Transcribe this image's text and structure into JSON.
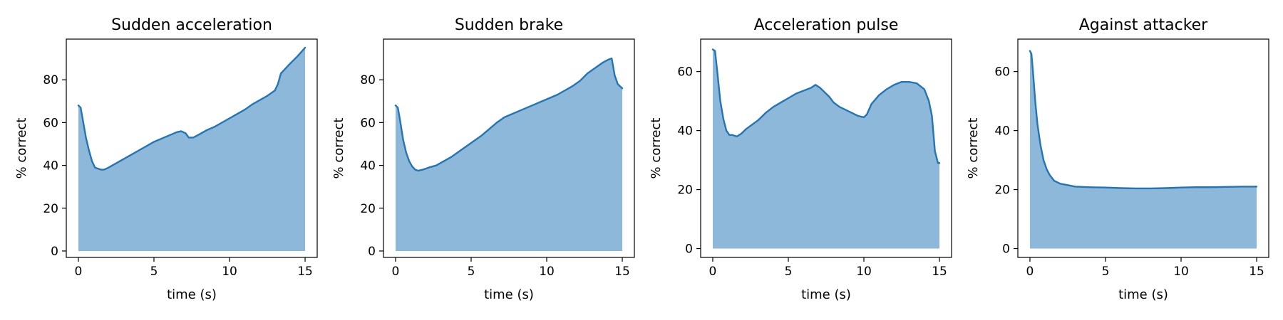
{
  "chart_data": [
    {
      "type": "area",
      "title": "Sudden acceleration",
      "xlabel": "time (s)",
      "ylabel": "% correct",
      "xlim": [
        -0.8,
        15.8
      ],
      "ylim": [
        -3,
        99
      ],
      "xticks": [
        0,
        5,
        10,
        15
      ],
      "yticks": [
        0,
        20,
        40,
        60,
        80
      ],
      "x": [
        0,
        0.15,
        0.3,
        0.5,
        0.7,
        0.9,
        1.1,
        1.3,
        1.5,
        1.7,
        2.0,
        2.5,
        3.0,
        3.5,
        4.0,
        4.5,
        5.0,
        5.5,
        6.0,
        6.5,
        6.8,
        7.1,
        7.3,
        7.6,
        8.0,
        8.5,
        9.0,
        9.5,
        10.0,
        10.5,
        11.0,
        11.5,
        12.0,
        12.5,
        13.0,
        13.2,
        13.4,
        13.6,
        14.0,
        14.5,
        15.0
      ],
      "y": [
        68,
        67,
        61,
        53,
        47,
        42,
        39,
        38.5,
        38,
        38,
        39,
        41,
        43,
        45,
        47,
        49,
        51,
        52.5,
        54,
        55.5,
        56,
        55,
        53,
        53,
        54.5,
        56.5,
        58,
        60,
        62,
        64,
        66,
        68.5,
        70.5,
        72.5,
        75,
        78,
        83,
        84.5,
        87.5,
        91,
        95
      ]
    },
    {
      "type": "area",
      "title": "Sudden brake",
      "xlabel": "time (s)",
      "ylabel": "% correct",
      "xlim": [
        -0.8,
        15.8
      ],
      "ylim": [
        -3,
        99
      ],
      "xticks": [
        0,
        5,
        10,
        15
      ],
      "yticks": [
        0,
        20,
        40,
        60,
        80
      ],
      "x": [
        0,
        0.15,
        0.3,
        0.5,
        0.7,
        0.9,
        1.1,
        1.3,
        1.5,
        1.8,
        2.2,
        2.7,
        3.2,
        3.7,
        4.2,
        4.7,
        5.2,
        5.7,
        6.2,
        6.7,
        7.2,
        7.7,
        8.2,
        8.7,
        9.2,
        9.7,
        10.2,
        10.7,
        11.2,
        11.7,
        12.2,
        12.7,
        13.2,
        13.7,
        14.1,
        14.3,
        14.5,
        14.7,
        15.0
      ],
      "y": [
        68,
        67,
        61,
        52,
        46,
        42,
        39.5,
        38,
        37.5,
        38,
        39,
        40,
        42,
        44,
        46.5,
        49,
        51.5,
        54,
        57,
        60,
        62.5,
        64,
        65.5,
        67,
        68.5,
        70,
        71.5,
        73,
        75,
        77,
        79.5,
        83,
        85.5,
        88,
        89.5,
        90,
        82,
        78,
        76
      ]
    },
    {
      "type": "area",
      "title": "Acceleration pulse",
      "xlabel": "time (s)",
      "ylabel": "% correct",
      "xlim": [
        -0.8,
        15.8
      ],
      "ylim": [
        -3,
        71
      ],
      "xticks": [
        0,
        5,
        10,
        15
      ],
      "yticks": [
        0,
        20,
        40,
        60
      ],
      "x": [
        0,
        0.15,
        0.3,
        0.5,
        0.7,
        0.9,
        1.1,
        1.3,
        1.6,
        1.9,
        2.2,
        2.6,
        3.0,
        3.5,
        4.0,
        4.5,
        5.0,
        5.5,
        6.0,
        6.5,
        6.8,
        7.1,
        7.4,
        7.7,
        8.0,
        8.4,
        8.8,
        9.2,
        9.6,
        10.0,
        10.2,
        10.5,
        11.0,
        11.5,
        12.0,
        12.5,
        13.0,
        13.5,
        14.0,
        14.3,
        14.5,
        14.7,
        14.9,
        15.0
      ],
      "y": [
        67.5,
        67,
        60,
        50,
        44,
        40,
        38.5,
        38.5,
        38,
        39,
        40.5,
        42,
        43.5,
        46,
        48,
        49.5,
        51,
        52.5,
        53.5,
        54.5,
        55.5,
        54.5,
        53,
        51.5,
        49.5,
        48,
        47,
        46,
        45,
        44.5,
        45.5,
        49,
        52,
        54,
        55.5,
        56.5,
        56.5,
        56,
        54,
        50,
        45,
        33,
        29,
        29
      ]
    },
    {
      "type": "area",
      "title": "Against attacker",
      "xlabel": "time (s)",
      "ylabel": "% correct",
      "xlim": [
        -0.8,
        15.8
      ],
      "ylim": [
        -3,
        71
      ],
      "xticks": [
        0,
        5,
        10,
        15
      ],
      "yticks": [
        0,
        20,
        40,
        60
      ],
      "x": [
        0,
        0.1,
        0.2,
        0.35,
        0.5,
        0.7,
        0.9,
        1.1,
        1.3,
        1.6,
        2.0,
        2.5,
        3.0,
        4.0,
        5.0,
        6.0,
        7.0,
        8.0,
        9.0,
        10.0,
        11.0,
        12.0,
        13.0,
        14.0,
        15.0
      ],
      "y": [
        67,
        66,
        60,
        50,
        42,
        35,
        30,
        27,
        25,
        23,
        22,
        21.5,
        21,
        20.8,
        20.7,
        20.5,
        20.4,
        20.4,
        20.5,
        20.7,
        20.8,
        20.8,
        20.9,
        21,
        21
      ]
    }
  ],
  "colors": {
    "fill": "#8eb8d9",
    "line": "#2475b4"
  }
}
